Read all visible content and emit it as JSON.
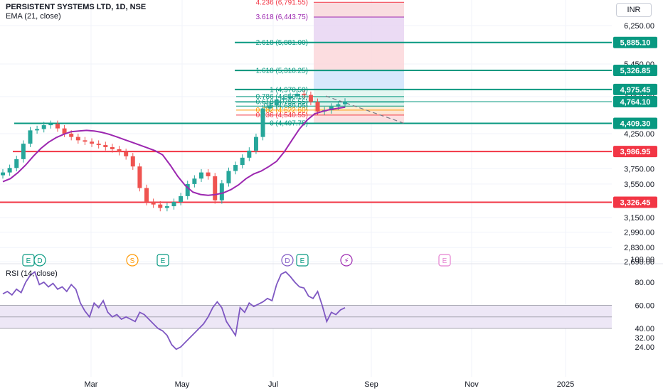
{
  "header": {
    "symbol_title": "PERSISTENT SYSTEMS LTD, 1D, NSE",
    "indicator": "EMA (21, close)",
    "currency_button": "INR"
  },
  "rsi_panel": {
    "title": "RSI (14, close)"
  },
  "colors": {
    "up": "#26a69a",
    "down": "#ef5350",
    "ema": "#9c27b0",
    "teal_line": "#089981",
    "red_line": "#f23645",
    "rsi": "#7e57c2",
    "rsi_band": "#ede7f6",
    "grid": "#f0f3fa"
  },
  "events": [
    {
      "label": "E",
      "color": "#089981",
      "kind": "earnings"
    },
    {
      "label": "D",
      "color": "#089981",
      "kind": "dividend"
    },
    {
      "label": "S",
      "color": "#ff9800",
      "kind": "split"
    },
    {
      "label": "E",
      "color": "#089981",
      "kind": "earnings"
    },
    {
      "label": "D",
      "color": "#7e57c2",
      "kind": "dividend"
    },
    {
      "label": "E",
      "color": "#089981",
      "kind": "earnings"
    },
    {
      "label": "⚡",
      "color": "#9c27b0",
      "kind": "news"
    },
    {
      "label": "E",
      "color": "#e57fd0",
      "kind": "earnings-upcoming"
    }
  ],
  "chart_data": [
    {
      "type": "candlestick",
      "title": "PERSISTENT SYSTEMS LTD, 1D, NSE",
      "y_scale": "log",
      "ylim": [
        2600,
        6900
      ],
      "x_tick_labels": [
        "Mar",
        "May",
        "Jul",
        "Sep",
        "Nov",
        "2025"
      ],
      "y_tick_labels": [
        "6,250.00",
        "5,450.00",
        "4,850.00",
        "4,250.00",
        "3,750.00",
        "3,550.00",
        "3,150.00",
        "2,990.00",
        "2,830.00",
        "2,690.00"
      ],
      "y_ticks": [
        6250,
        5450,
        4850,
        4250,
        3750,
        3550,
        3150,
        2990,
        2830,
        2690
      ],
      "price_levels": [
        {
          "label": "5,885.10",
          "value": 5885.1,
          "color": "#089981"
        },
        {
          "label": "5,326.85",
          "value": 5326.85,
          "color": "#089981"
        },
        {
          "label": "4,975.45",
          "value": 4975.45,
          "color": "#089981"
        },
        {
          "label": "4,764.10",
          "value": 4764.1,
          "color": "#089981"
        },
        {
          "label": "4,409.30",
          "value": 4409.3,
          "color": "#089981"
        },
        {
          "label": "3,986.95",
          "value": 3986.95,
          "color": "#f23645"
        },
        {
          "label": "3,326.45",
          "value": 3326.45,
          "color": "#f23645"
        }
      ],
      "fib_levels": [
        {
          "label": "4.236 (6,791.55)",
          "value": 6791.55,
          "color": "#f23645"
        },
        {
          "label": "3.618 (6,443.75)",
          "value": 6443.75,
          "color": "#9c27b0"
        },
        {
          "label": "2.618 (5,881.00)",
          "value": 5881.0,
          "color": "#089981"
        },
        {
          "label": "1.618 (5,318.25)",
          "value": 5318.25,
          "color": "#089981"
        },
        {
          "label": "1 (4,970.50)",
          "value": 4970.5,
          "color": "#089981"
        },
        {
          "label": "0.786 (4,850.10)",
          "value": 4850.1,
          "color": "#089981"
        },
        {
          "label": "0.618 (4,755.55)",
          "value": 4755.55,
          "color": "#089981"
        },
        {
          "label": "0.5 (4,689.05)",
          "value": 4689.05,
          "color": "#089981"
        },
        {
          "label": "0.382 (4,622.60)",
          "value": 4622.6,
          "color": "#ff9800"
        },
        {
          "label": "0.236 (4,540.55)",
          "value": 4540.55,
          "color": "#f23645"
        },
        {
          "label": "0 (4,407.75)",
          "value": 4407.75,
          "color": "#089981"
        }
      ],
      "ema_close": [
        3580,
        3620,
        3700,
        3800,
        3920,
        4030,
        4120,
        4190,
        4240,
        4280,
        4290,
        4300,
        4290,
        4270,
        4240,
        4200,
        4160,
        4120,
        4080,
        4040,
        4000,
        3940,
        3800,
        3650,
        3530,
        3450,
        3420,
        3410,
        3420,
        3440,
        3480,
        3540,
        3620,
        3680,
        3720,
        3780,
        3850,
        3980,
        4150,
        4320,
        4460,
        4560,
        4600,
        4630,
        4650,
        4670
      ],
      "series_close": [
        3700,
        3760,
        3880,
        4100,
        4300,
        4320,
        4380,
        4400,
        4330,
        4250,
        4200,
        4150,
        4130,
        4100,
        4080,
        4050,
        4020,
        3980,
        3920,
        3780,
        3500,
        3330,
        3300,
        3260,
        3280,
        3330,
        3400,
        3550,
        3620,
        3700,
        3650,
        3350,
        3560,
        3720,
        3800,
        3900,
        4000,
        4200,
        4650,
        4700,
        4800,
        4820,
        4860,
        4900,
        4880,
        4760,
        4600,
        4620,
        4680,
        4720,
        4764
      ]
    },
    {
      "type": "line",
      "title": "RSI (14, close)",
      "ylim": [
        20,
        100
      ],
      "y_tick_labels": [
        "100.00",
        "80.00",
        "60.00",
        "40.00",
        "32.00",
        "24.00"
      ],
      "y_ticks": [
        100,
        80,
        60,
        40,
        32,
        24
      ],
      "band": [
        40,
        60
      ],
      "midline": 50,
      "values": [
        70,
        72,
        69,
        74,
        71,
        80,
        86,
        89,
        78,
        80,
        76,
        79,
        74,
        76,
        72,
        78,
        74,
        62,
        55,
        50,
        62,
        58,
        64,
        54,
        50,
        52,
        48,
        50,
        48,
        46,
        54,
        52,
        48,
        44,
        40,
        38,
        34,
        26,
        22,
        24,
        28,
        32,
        36,
        40,
        44,
        50,
        58,
        63,
        58,
        46,
        40,
        34,
        58,
        54,
        62,
        59,
        61,
        63,
        66,
        64,
        78,
        87,
        89,
        85,
        80,
        76,
        75,
        68,
        66,
        72,
        60,
        46,
        54,
        52,
        56,
        58
      ]
    }
  ]
}
